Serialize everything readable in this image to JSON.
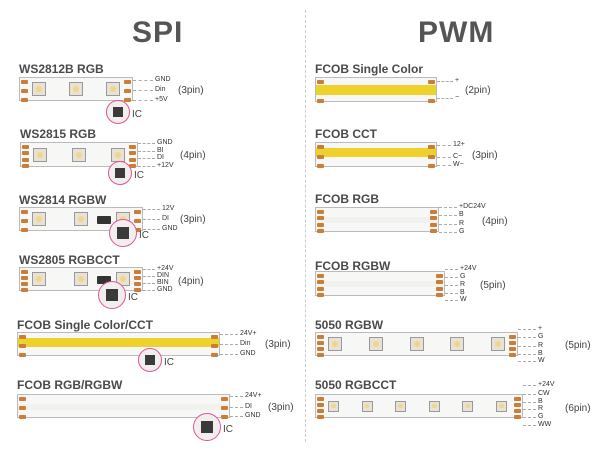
{
  "headers": {
    "spi": "SPI",
    "pwm": "PWM"
  },
  "ic_label": "IC",
  "colors": {
    "copper": "#c97e3a",
    "cob_yellow": "#eed12a",
    "ic_ring": "#e0559a"
  },
  "spi": [
    {
      "title": "WS2812B RGB",
      "pins": [
        "GND",
        "Din",
        "+5V"
      ],
      "pin_count": "(3pin)"
    },
    {
      "title": "WS2815 RGB",
      "pins": [
        "GND",
        "BI",
        "DI",
        "+12V"
      ],
      "pin_count": "(4pin)"
    },
    {
      "title": "WS2814 RGBW",
      "pins": [
        "12V",
        "DI",
        "GND"
      ],
      "pin_count": "(3pin)"
    },
    {
      "title": "WS2805 RGBCCT",
      "pins": [
        "+24V",
        "DIN",
        "BIN",
        "GND"
      ],
      "pin_count": "(4pin)"
    },
    {
      "title": "FCOB Single Color/CCT",
      "pins": [
        "24V+",
        "Din",
        "GND"
      ],
      "pin_count": "(3pin)"
    },
    {
      "title": "FCOB RGB/RGBW",
      "pins": [
        "24V+",
        "DI",
        "GND"
      ],
      "pin_count": "(3pin)"
    }
  ],
  "pwm": [
    {
      "title": "FCOB Single Color",
      "pins": [
        "+",
        "−"
      ],
      "pin_count": "(2pin)"
    },
    {
      "title": "FCOB CCT",
      "pins": [
        "12+",
        "C−",
        "W−"
      ],
      "pin_count": "(3pin)"
    },
    {
      "title": "FCOB RGB",
      "pins": [
        "+DC24V",
        "B",
        "R",
        "G"
      ],
      "pin_count": "(4pin)"
    },
    {
      "title": "FCOB RGBW",
      "pins": [
        "+24V",
        "G",
        "R",
        "B",
        "W"
      ],
      "pin_count": "(5pin)"
    },
    {
      "title": "5050 RGBW",
      "pins": [
        "+",
        "G",
        "R",
        "B",
        "W"
      ],
      "pin_count": "(5pin)"
    },
    {
      "title": "5050 RGBCCT",
      "pins": [
        "+24V",
        "CW",
        "B",
        "R",
        "G",
        "WW"
      ],
      "pin_count": "(6pin)"
    }
  ]
}
